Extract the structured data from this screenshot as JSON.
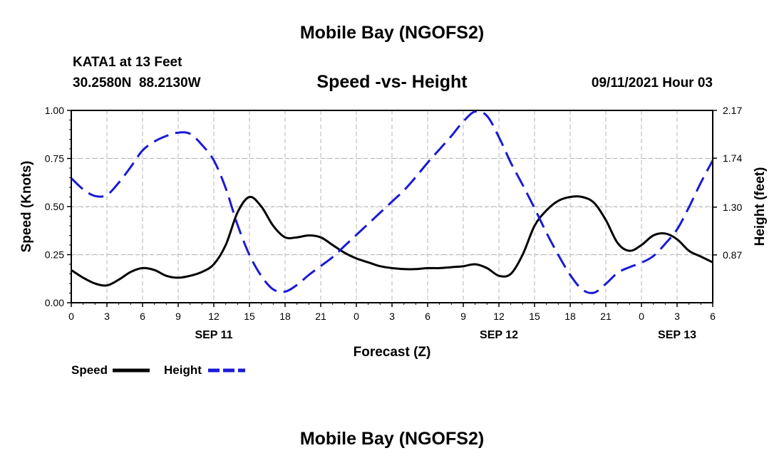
{
  "page": {
    "title_top": "Mobile Bay (NGOFS2)",
    "title_bottom": "Mobile Bay (NGOFS2)",
    "station": "KATA1 at 13 Feet",
    "coords": "30.2580N  88.2130W",
    "timestamp": "09/11/2021 Hour 03"
  },
  "chart_data": {
    "type": "line",
    "title": "Speed -vs- Height",
    "xlabel": "Forecast (Z)",
    "ylabel_left": "Speed (Knots)",
    "ylabel_right": "Height (feet)",
    "x_range_hours": [
      0,
      54
    ],
    "x_tick_step_hours": 3,
    "x_tick_labels": [
      "0",
      "3",
      "6",
      "9",
      "12",
      "15",
      "18",
      "21",
      "0",
      "3",
      "6",
      "9",
      "12",
      "15",
      "18",
      "21",
      "0",
      "3",
      "6"
    ],
    "date_labels": [
      {
        "label": "SEP 11",
        "hour": 12
      },
      {
        "label": "SEP 12",
        "hour": 36
      },
      {
        "label": "SEP 13",
        "hour": 51
      }
    ],
    "y_left": {
      "range": [
        0,
        1.0
      ],
      "ticks": [
        0.0,
        0.25,
        0.5,
        0.75,
        1.0
      ],
      "tick_labels": [
        "0.00",
        "0.25",
        "0.50",
        "0.75",
        "1.00"
      ]
    },
    "y_right": {
      "range": [
        0.44,
        2.17
      ],
      "ticks": [
        0.87,
        1.3,
        1.74,
        2.17
      ],
      "tick_labels": [
        "0.87",
        "1.30",
        "1.74",
        "2.17"
      ]
    },
    "grid": true,
    "series": [
      {
        "name": "Speed",
        "axis": "left",
        "color": "#000000",
        "style": "solid",
        "x": [
          0,
          1,
          2,
          3,
          4,
          5,
          6,
          7,
          8,
          9,
          10,
          11,
          12,
          13,
          14,
          15,
          16,
          17,
          18,
          19,
          20,
          21,
          22,
          23,
          24,
          25,
          26,
          27,
          28,
          29,
          30,
          31,
          32,
          33,
          34,
          35,
          36,
          37,
          38,
          39,
          40,
          41,
          42,
          43,
          44,
          45,
          46,
          47,
          48,
          49,
          50,
          51,
          52,
          53,
          54
        ],
        "values": [
          0.17,
          0.13,
          0.1,
          0.09,
          0.12,
          0.16,
          0.18,
          0.17,
          0.14,
          0.13,
          0.14,
          0.16,
          0.2,
          0.3,
          0.47,
          0.55,
          0.5,
          0.4,
          0.34,
          0.34,
          0.35,
          0.34,
          0.3,
          0.26,
          0.23,
          0.21,
          0.19,
          0.18,
          0.175,
          0.175,
          0.18,
          0.18,
          0.185,
          0.19,
          0.2,
          0.18,
          0.14,
          0.15,
          0.25,
          0.4,
          0.48,
          0.53,
          0.55,
          0.55,
          0.52,
          0.43,
          0.31,
          0.27,
          0.3,
          0.35,
          0.36,
          0.33,
          0.27,
          0.24,
          0.21
        ]
      },
      {
        "name": "Height",
        "axis": "right",
        "color": "#1a1ad6",
        "style": "dashed",
        "x": [
          0,
          1,
          2,
          3,
          4,
          5,
          6,
          7,
          8,
          9,
          10,
          11,
          12,
          13,
          14,
          15,
          16,
          17,
          18,
          19,
          20,
          21,
          22,
          23,
          24,
          25,
          26,
          27,
          28,
          29,
          30,
          31,
          32,
          33,
          34,
          35,
          36,
          37,
          38,
          39,
          40,
          41,
          42,
          43,
          44,
          45,
          46,
          47,
          48,
          49,
          50,
          51,
          52,
          53,
          54
        ],
        "values": [
          1.56,
          1.46,
          1.4,
          1.41,
          1.52,
          1.66,
          1.81,
          1.89,
          1.94,
          1.97,
          1.96,
          1.86,
          1.72,
          1.47,
          1.14,
          0.87,
          0.68,
          0.56,
          0.54,
          0.6,
          0.69,
          0.77,
          0.85,
          0.95,
          1.05,
          1.15,
          1.25,
          1.35,
          1.45,
          1.57,
          1.7,
          1.82,
          1.94,
          2.07,
          2.16,
          2.12,
          1.93,
          1.7,
          1.5,
          1.29,
          1.07,
          0.87,
          0.69,
          0.56,
          0.53,
          0.61,
          0.71,
          0.76,
          0.8,
          0.86,
          0.97,
          1.1,
          1.3,
          1.52,
          1.72
        ]
      }
    ],
    "legend": [
      {
        "label": "Speed",
        "color": "#000000",
        "style": "solid"
      },
      {
        "label": "Height",
        "color": "#1a1ad6",
        "style": "dashed"
      }
    ],
    "legend_placement": "bottom-left"
  }
}
